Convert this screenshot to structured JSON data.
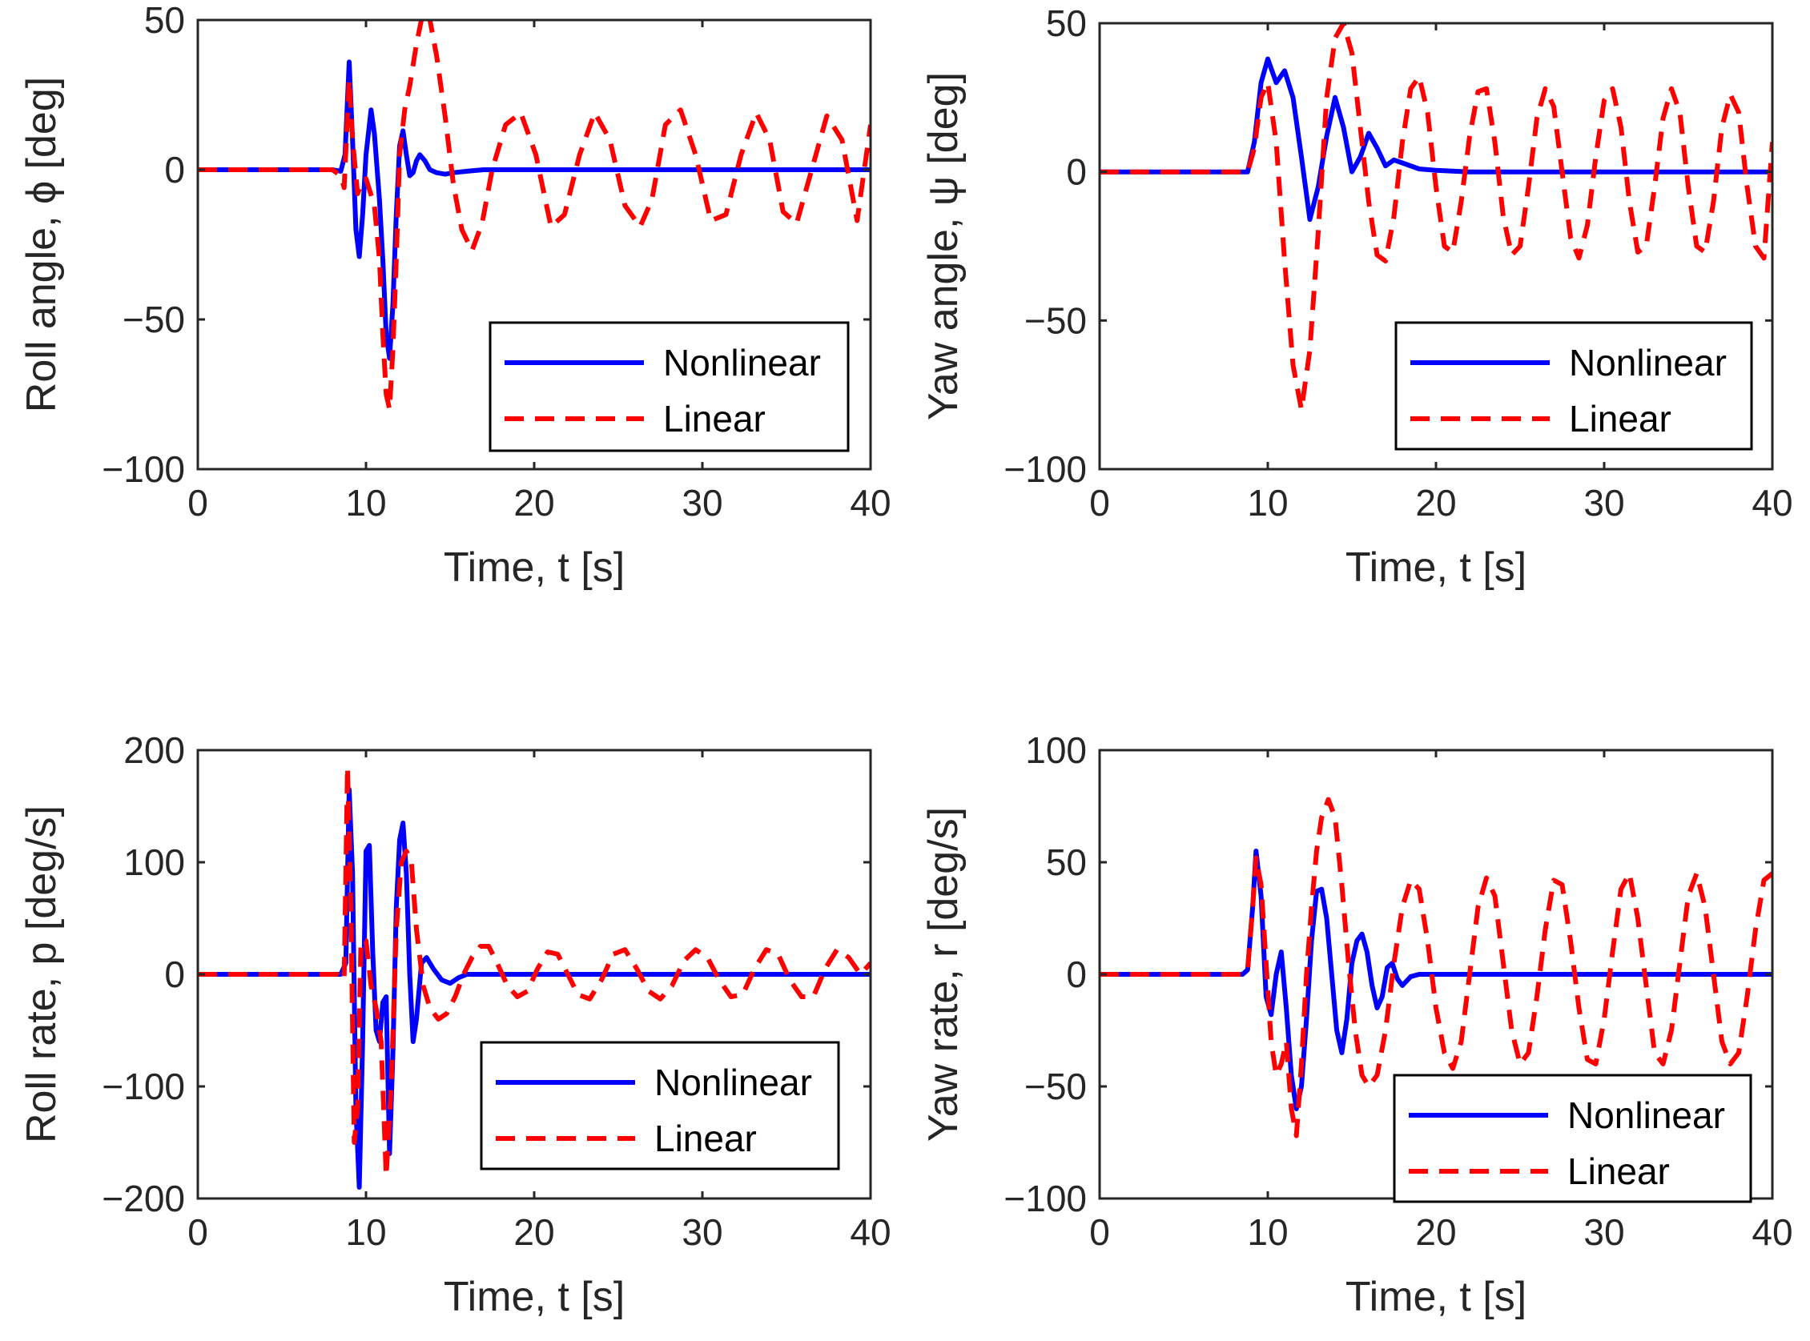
{
  "colors": {
    "nonlinear": "#0000ff",
    "linear": "#ff0000",
    "axes": "#262626",
    "legend_border": "#000000"
  },
  "chart_data": [
    {
      "id": "roll-angle",
      "type": "line",
      "title": "",
      "xlabel": "Time, t [s]",
      "ylabel": "Roll angle, ϕ [deg]",
      "xlim": [
        0,
        40
      ],
      "ylim": [
        -100,
        50
      ],
      "xticks": [
        0,
        10,
        20,
        30,
        40
      ],
      "yticks": [
        -100,
        -50,
        0,
        50
      ],
      "xtick_labels": [
        "0",
        "10",
        "20",
        "30",
        "40"
      ],
      "ytick_labels": [
        "−100",
        "−50",
        "0",
        "50"
      ],
      "legend_position": "lower-right",
      "grid": false,
      "series": [
        {
          "name": "Nonlinear",
          "style": "solid",
          "x": [
            0,
            8.0,
            8.5,
            8.75,
            9.0,
            9.2,
            9.4,
            9.6,
            9.8,
            10.0,
            10.3,
            10.5,
            10.8,
            11.0,
            11.2,
            11.4,
            11.6,
            11.8,
            12.0,
            12.2,
            12.4,
            12.6,
            12.8,
            13.0,
            13.2,
            13.5,
            13.8,
            14.2,
            14.7,
            15.2,
            16.0,
            17.0,
            18.0,
            40
          ],
          "y": [
            0,
            0,
            -0.5,
            5,
            36,
            10,
            -20,
            -29,
            -15,
            5,
            20,
            12,
            -10,
            -30,
            -55,
            -63,
            -45,
            -15,
            8,
            13,
            5,
            -2,
            -1,
            3,
            5,
            3,
            0,
            -1,
            -1.5,
            -1,
            -0.5,
            0,
            0,
            0
          ]
        },
        {
          "name": "Linear",
          "style": "dashed",
          "x": [
            0,
            8.0,
            8.5,
            8.7,
            9.0,
            9.2,
            9.5,
            9.7,
            10.0,
            10.5,
            10.8,
            11.0,
            11.2,
            11.4,
            11.6,
            11.8,
            12.0,
            12.3,
            12.6,
            13.0,
            13.4,
            13.8,
            14.2,
            14.7,
            15.2,
            15.7,
            16.3,
            16.9,
            17.5,
            18.3,
            19.2,
            20.1,
            21.0,
            21.8,
            22.7,
            23.6,
            24.5,
            25.4,
            26.3,
            27.0,
            27.8,
            28.7,
            29.6,
            30.5,
            31.4,
            32.3,
            33.2,
            34.0,
            34.8,
            35.6,
            36.5,
            37.4,
            38.3,
            39.2,
            40.0
          ],
          "y": [
            0,
            0,
            -2,
            -6,
            30,
            10,
            -8,
            -5,
            -3,
            -12,
            -30,
            -55,
            -75,
            -80,
            -60,
            -30,
            5,
            20,
            28,
            42,
            53,
            50,
            38,
            18,
            -5,
            -20,
            -27,
            -18,
            0,
            15,
            19,
            5,
            -19,
            -15,
            5,
            19,
            10,
            -12,
            -19,
            -10,
            15,
            20,
            5,
            -17,
            -15,
            5,
            19,
            10,
            -14,
            -18,
            0,
            18,
            10,
            -17,
            15
          ]
        }
      ]
    },
    {
      "id": "yaw-angle",
      "type": "line",
      "title": "",
      "xlabel": "Time, t [s]",
      "ylabel": "Yaw angle, ψ [deg]",
      "xlim": [
        0,
        40
      ],
      "ylim": [
        -100,
        50
      ],
      "xticks": [
        0,
        10,
        20,
        30,
        40
      ],
      "yticks": [
        -100,
        -50,
        0,
        50
      ],
      "xtick_labels": [
        "0",
        "10",
        "20",
        "30",
        "40"
      ],
      "ytick_labels": [
        "−100",
        "−50",
        "0",
        "50"
      ],
      "legend_position": "lower-right",
      "grid": false,
      "series": [
        {
          "name": "Nonlinear",
          "style": "solid",
          "x": [
            0,
            8.8,
            9.2,
            9.6,
            10.0,
            10.5,
            11.0,
            11.5,
            12.0,
            12.5,
            13.0,
            13.5,
            14.0,
            14.5,
            15.0,
            15.5,
            16.0,
            16.5,
            17.0,
            17.5,
            18.0,
            19.0,
            20.0,
            22.0,
            25.0,
            40
          ],
          "y": [
            0,
            0,
            10,
            30,
            38,
            30,
            34,
            25,
            5,
            -16,
            -5,
            12,
            25,
            15,
            0,
            5,
            13,
            8,
            2,
            4,
            3,
            1,
            0.5,
            0,
            0,
            0
          ]
        },
        {
          "name": "Linear",
          "style": "dashed",
          "x": [
            0,
            8.8,
            9.2,
            9.6,
            10.0,
            10.5,
            11.0,
            11.5,
            12.0,
            12.5,
            13.0,
            13.5,
            14.0,
            14.5,
            15.0,
            15.5,
            16.0,
            16.5,
            17.0,
            17.5,
            18.0,
            18.5,
            19.0,
            19.5,
            20.0,
            20.5,
            21.0,
            21.5,
            22.0,
            22.5,
            23.0,
            23.5,
            24.0,
            24.5,
            25.0,
            25.5,
            26.0,
            26.5,
            27.0,
            27.5,
            28.0,
            28.5,
            29.0,
            29.5,
            30.0,
            30.5,
            31.0,
            31.5,
            32.0,
            32.5,
            33.0,
            33.5,
            34.0,
            34.5,
            35.0,
            35.5,
            36.0,
            36.5,
            37.0,
            37.5,
            38.0,
            38.5,
            39.0,
            39.5,
            40.0
          ],
          "y": [
            0,
            0,
            8,
            25,
            30,
            10,
            -30,
            -65,
            -80,
            -60,
            -20,
            25,
            45,
            50,
            40,
            15,
            -10,
            -28,
            -30,
            -15,
            10,
            28,
            32,
            20,
            -5,
            -25,
            -27,
            -10,
            12,
            27,
            28,
            10,
            -15,
            -28,
            -25,
            -5,
            18,
            28,
            22,
            0,
            -22,
            -29,
            -18,
            5,
            24,
            28,
            15,
            -10,
            -27,
            -25,
            -5,
            18,
            28,
            20,
            -5,
            -25,
            -27,
            -10,
            15,
            26,
            20,
            -5,
            -25,
            -29,
            10
          ]
        }
      ]
    },
    {
      "id": "roll-rate",
      "type": "line",
      "title": "",
      "xlabel": "Time, t [s]",
      "ylabel": "Roll rate, p [deg/s]",
      "xlim": [
        0,
        40
      ],
      "ylim": [
        -200,
        200
      ],
      "xticks": [
        0,
        10,
        20,
        30,
        40
      ],
      "yticks": [
        -200,
        -100,
        0,
        100,
        200
      ],
      "xtick_labels": [
        "0",
        "10",
        "20",
        "30",
        "40"
      ],
      "ytick_labels": [
        "−200",
        "−100",
        "0",
        "100",
        "200"
      ],
      "legend_position": "lower-right",
      "grid": false,
      "series": [
        {
          "name": "Nonlinear",
          "style": "solid",
          "x": [
            0,
            8.5,
            8.8,
            9.0,
            9.2,
            9.4,
            9.6,
            9.8,
            10.0,
            10.2,
            10.4,
            10.6,
            10.8,
            11.0,
            11.2,
            11.4,
            11.6,
            11.8,
            12.0,
            12.2,
            12.4,
            12.6,
            12.8,
            13.0,
            13.3,
            13.6,
            14.0,
            14.5,
            15.0,
            15.5,
            16.0,
            17.0,
            18.0,
            40
          ],
          "y": [
            0,
            0,
            10,
            165,
            90,
            -120,
            -190,
            -60,
            110,
            115,
            20,
            -50,
            -60,
            -25,
            -20,
            -160,
            -70,
            60,
            120,
            135,
            90,
            0,
            -60,
            -40,
            10,
            15,
            5,
            -5,
            -8,
            -3,
            0,
            0,
            0,
            0
          ]
        },
        {
          "name": "Linear",
          "style": "dashed",
          "x": [
            0,
            8.3,
            8.7,
            8.9,
            9.1,
            9.3,
            9.5,
            9.7,
            10.0,
            10.3,
            10.6,
            10.9,
            11.2,
            11.5,
            11.8,
            12.1,
            12.4,
            12.7,
            13.0,
            13.4,
            13.8,
            14.3,
            14.8,
            15.3,
            15.8,
            16.3,
            16.8,
            17.3,
            17.8,
            18.4,
            19.0,
            19.6,
            20.2,
            20.8,
            21.4,
            22.0,
            22.6,
            23.3,
            24.0,
            24.7,
            25.4,
            26.1,
            26.8,
            27.5,
            28.2,
            28.9,
            29.6,
            30.3,
            31.0,
            31.7,
            32.4,
            33.1,
            33.8,
            34.5,
            35.2,
            35.9,
            36.6,
            37.3,
            38.0,
            38.7,
            39.4,
            40.0
          ],
          "y": [
            0,
            0,
            -5,
            185,
            60,
            -150,
            -120,
            30,
            30,
            -10,
            -30,
            -60,
            -180,
            -100,
            40,
            100,
            110,
            100,
            40,
            -10,
            -30,
            -40,
            -35,
            -20,
            0,
            15,
            25,
            25,
            10,
            -10,
            -20,
            -15,
            5,
            20,
            18,
            0,
            -18,
            -22,
            -5,
            18,
            22,
            5,
            -15,
            -22,
            -10,
            12,
            22,
            15,
            -5,
            -20,
            -18,
            5,
            22,
            18,
            -5,
            -20,
            -20,
            5,
            22,
            15,
            0,
            10
          ]
        }
      ]
    },
    {
      "id": "yaw-rate",
      "type": "line",
      "title": "",
      "xlabel": "Time, t [s]",
      "ylabel": "Yaw rate, r [deg/s]",
      "xlim": [
        0,
        40
      ],
      "ylim": [
        -100,
        100
      ],
      "xticks": [
        0,
        10,
        20,
        30,
        40
      ],
      "yticks": [
        -100,
        -50,
        0,
        50,
        100
      ],
      "xtick_labels": [
        "0",
        "10",
        "20",
        "30",
        "40"
      ],
      "ytick_labels": [
        "−100",
        "−50",
        "0",
        "50",
        "100"
      ],
      "legend_position": "lower-right",
      "grid": false,
      "series": [
        {
          "name": "Nonlinear",
          "style": "solid",
          "x": [
            0,
            8.5,
            8.8,
            9.1,
            9.3,
            9.6,
            9.9,
            10.2,
            10.5,
            10.8,
            11.1,
            11.4,
            11.7,
            12.0,
            12.3,
            12.6,
            12.9,
            13.2,
            13.5,
            13.8,
            14.1,
            14.4,
            14.7,
            15.0,
            15.3,
            15.6,
            15.9,
            16.2,
            16.5,
            16.8,
            17.1,
            17.4,
            17.7,
            18.0,
            18.5,
            19.0,
            40
          ],
          "y": [
            0,
            0,
            2,
            30,
            55,
            35,
            -10,
            -18,
            0,
            10,
            -15,
            -45,
            -60,
            -50,
            -20,
            15,
            37,
            38,
            25,
            0,
            -25,
            -35,
            -20,
            5,
            15,
            18,
            10,
            -5,
            -15,
            -10,
            3,
            5,
            -2,
            -5,
            -1,
            0,
            0
          ]
        },
        {
          "name": "Linear",
          "style": "dashed",
          "x": [
            0,
            8.5,
            8.8,
            9.1,
            9.3,
            9.6,
            9.9,
            10.2,
            10.5,
            10.8,
            11.1,
            11.4,
            11.7,
            12.0,
            12.3,
            12.6,
            12.9,
            13.2,
            13.6,
            14.0,
            14.4,
            14.8,
            15.2,
            15.6,
            16.0,
            16.5,
            17.0,
            17.5,
            18.0,
            18.5,
            19.0,
            19.5,
            20.0,
            20.5,
            21.0,
            21.5,
            22.0,
            22.5,
            23.0,
            23.5,
            24.0,
            24.5,
            25.0,
            25.5,
            26.0,
            26.5,
            27.0,
            27.5,
            28.0,
            28.5,
            29.0,
            29.5,
            30.0,
            30.5,
            31.0,
            31.5,
            32.0,
            32.5,
            33.0,
            33.5,
            34.0,
            34.5,
            35.0,
            35.5,
            36.0,
            36.5,
            37.0,
            37.5,
            38.0,
            38.5,
            39.0,
            39.5,
            40.0
          ],
          "y": [
            0,
            0,
            2,
            30,
            52,
            40,
            5,
            -30,
            -45,
            -40,
            -30,
            -60,
            -72,
            -40,
            0,
            30,
            55,
            70,
            78,
            70,
            40,
            5,
            -25,
            -45,
            -50,
            -45,
            -25,
            5,
            30,
            42,
            38,
            15,
            -15,
            -35,
            -42,
            -30,
            0,
            30,
            43,
            35,
            5,
            -25,
            -40,
            -35,
            -10,
            20,
            42,
            40,
            15,
            -15,
            -38,
            -40,
            -20,
            10,
            38,
            45,
            25,
            -5,
            -35,
            -40,
            -25,
            5,
            35,
            45,
            30,
            0,
            -30,
            -40,
            -35,
            -10,
            20,
            42,
            45
          ]
        }
      ]
    }
  ]
}
